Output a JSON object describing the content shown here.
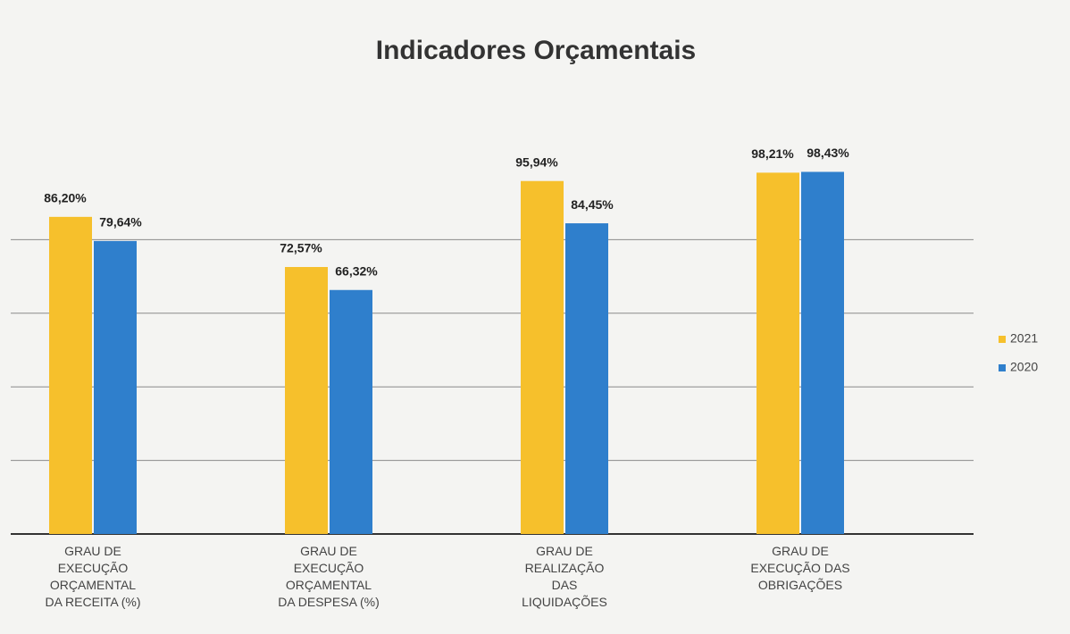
{
  "chart_data": {
    "type": "bar",
    "title": "Indicadores Orçamentais",
    "categories": [
      "GRAU DE\nEXECUÇÃO\nORÇAMENTAL\nDA RECEITA (%)",
      "GRAU DE\nEXECUÇÃO\nORÇAMENTAL\nDA DESPESA (%)",
      "GRAU DE\nREALIZAÇÃO\nDAS\nLIQUIDAÇÕES",
      "GRAU DE\nEXECUÇÃO DAS\nOBRIGAÇÕES"
    ],
    "series": [
      {
        "name": "2021",
        "color": "#f6c02c",
        "values": [
          86.2,
          72.57,
          95.94,
          98.21
        ],
        "value_labels": [
          "86,20%",
          "72,57%",
          "95,94%",
          "98,21%"
        ]
      },
      {
        "name": "2020",
        "color": "#2f7fcc",
        "values": [
          79.64,
          66.32,
          84.45,
          98.43
        ],
        "value_labels": [
          "79,64%",
          "66,32%",
          "84,45%",
          "98,43%"
        ]
      }
    ],
    "ylim": [
      0,
      100
    ],
    "yticks": [
      0,
      20,
      40,
      60,
      80
    ],
    "grid": true,
    "legend": "right"
  }
}
